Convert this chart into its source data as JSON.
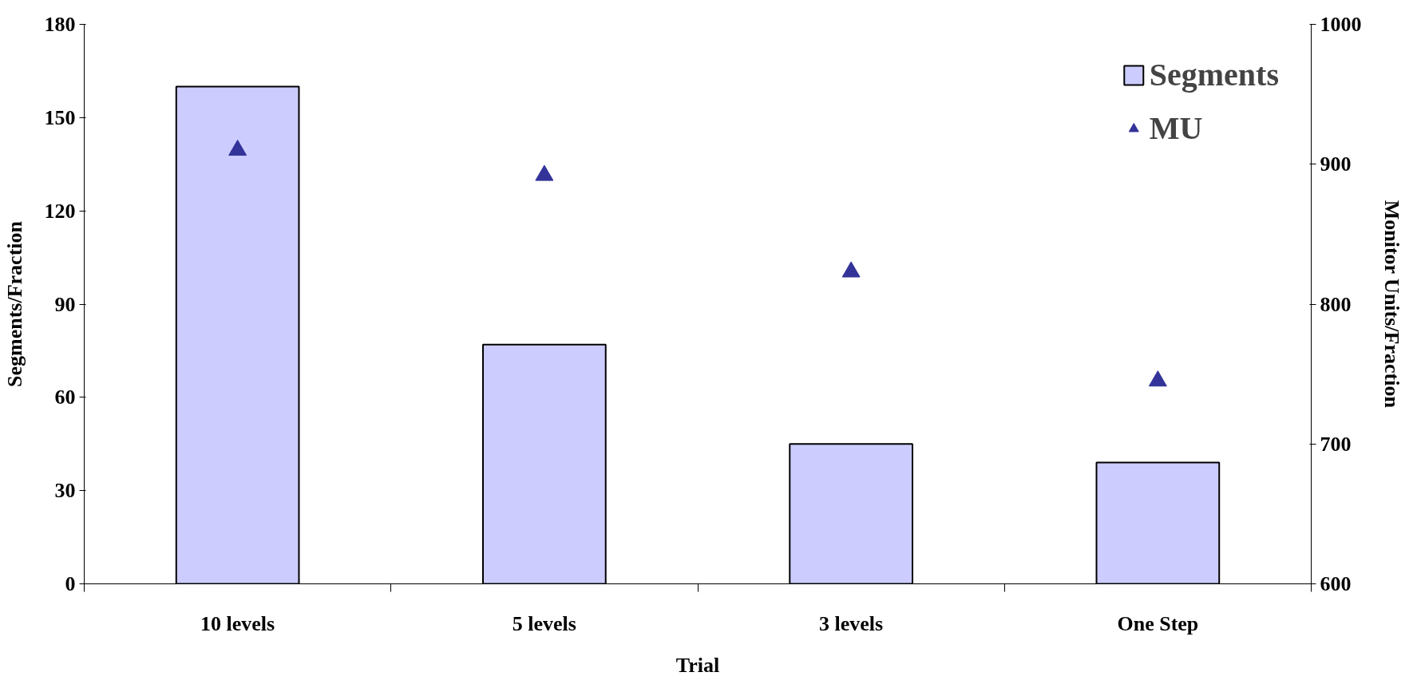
{
  "chart_data": {
    "type": "bar",
    "xlabel": "Trial",
    "ylabel": "Segments/Fraction",
    "y2label": "Monitor Units/Fraction",
    "categories": [
      "10 levels",
      "5 levels",
      "3 levels",
      "One Step"
    ],
    "series": [
      {
        "name": "Segments",
        "color": "#ccccff",
        "values": [
          160,
          77,
          45,
          39
        ]
      },
      {
        "name": "MU",
        "type": "scatter",
        "axis": "y2",
        "marker": "triangle",
        "color": "#333399",
        "values": [
          910,
          892,
          823,
          745
        ]
      }
    ],
    "ylim": [
      0,
      180
    ],
    "yticks": [
      0,
      30,
      60,
      90,
      120,
      150,
      180
    ],
    "y2lim": [
      600,
      1000
    ],
    "y2ticks": [
      600,
      700,
      800,
      900,
      1000
    ],
    "grid": false,
    "legend": "top right"
  }
}
